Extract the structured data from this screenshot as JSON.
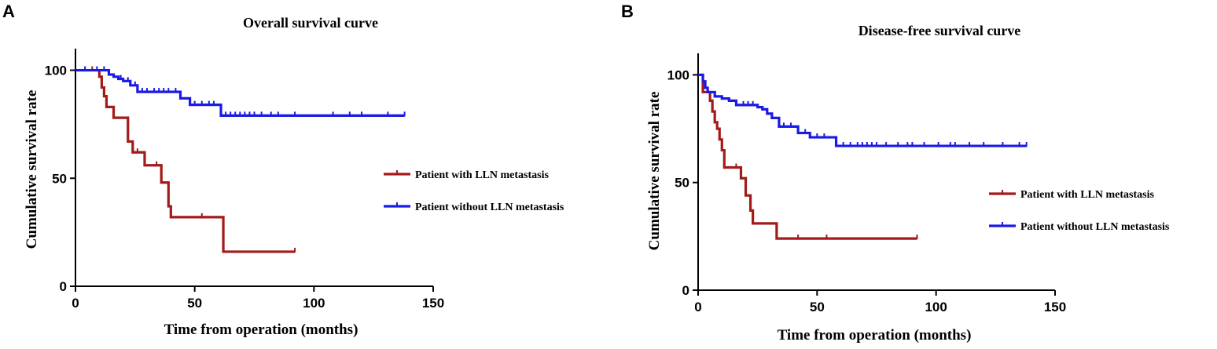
{
  "chart_data": [
    {
      "type": "line",
      "panel": "A",
      "title": "Overall survival curve",
      "xlabel": "Time from operation (months)",
      "ylabel": "Cumulative survival rate",
      "xlim": [
        0,
        150
      ],
      "ylim": [
        0,
        110
      ],
      "xticks": [
        0,
        50,
        100,
        150
      ],
      "yticks": [
        0,
        50,
        100
      ],
      "legend_position": "right",
      "series": [
        {
          "name": "Patient with LLN metastasis",
          "color": "#a31a1a",
          "steps": [
            [
              0,
              100
            ],
            [
              9,
              100
            ],
            [
              10,
              97
            ],
            [
              11,
              92
            ],
            [
              12,
              88
            ],
            [
              13,
              83
            ],
            [
              16,
              78
            ],
            [
              22,
              67
            ],
            [
              24,
              62
            ],
            [
              29,
              56
            ],
            [
              36,
              48
            ],
            [
              39,
              37
            ],
            [
              40,
              32
            ],
            [
              62,
              16
            ],
            [
              92,
              16
            ]
          ],
          "censor": [
            [
              7,
              100
            ],
            [
              26,
              62
            ],
            [
              34,
              56
            ],
            [
              53,
              32
            ],
            [
              92,
              16
            ]
          ]
        },
        {
          "name": "Patient without LLN metastasis",
          "color": "#1a1ae6",
          "steps": [
            [
              0,
              100
            ],
            [
              14,
              98
            ],
            [
              16,
              97
            ],
            [
              18,
              96
            ],
            [
              20,
              95
            ],
            [
              23,
              93
            ],
            [
              26,
              90
            ],
            [
              44,
              87
            ],
            [
              48,
              84
            ],
            [
              61,
              79
            ],
            [
              138,
              79
            ]
          ],
          "censor": [
            [
              4,
              100
            ],
            [
              9,
              100
            ],
            [
              12,
              100
            ],
            [
              19,
              96
            ],
            [
              22,
              95
            ],
            [
              25,
              93
            ],
            [
              28,
              90
            ],
            [
              30,
              90
            ],
            [
              33,
              90
            ],
            [
              35,
              90
            ],
            [
              37,
              90
            ],
            [
              39,
              90
            ],
            [
              42,
              90
            ],
            [
              50,
              84
            ],
            [
              53,
              84
            ],
            [
              56,
              84
            ],
            [
              58,
              84
            ],
            [
              63,
              79
            ],
            [
              65,
              79
            ],
            [
              67,
              79
            ],
            [
              69,
              79
            ],
            [
              71,
              79
            ],
            [
              73,
              79
            ],
            [
              75,
              79
            ],
            [
              78,
              79
            ],
            [
              82,
              79
            ],
            [
              85,
              79
            ],
            [
              92,
              79
            ],
            [
              108,
              79
            ],
            [
              115,
              79
            ],
            [
              120,
              79
            ],
            [
              131,
              79
            ],
            [
              138,
              79
            ]
          ]
        }
      ]
    },
    {
      "type": "line",
      "panel": "B",
      "title": "Disease-free survival curve",
      "xlabel": "Time from operation (months)",
      "ylabel": "Cumulative survival rate",
      "xlim": [
        0,
        150
      ],
      "ylim": [
        0,
        110
      ],
      "xticks": [
        0,
        50,
        100,
        150
      ],
      "yticks": [
        0,
        50,
        100
      ],
      "legend_position": "right",
      "series": [
        {
          "name": "Patient with LLN metastasis",
          "color": "#a31a1a",
          "steps": [
            [
              0,
              100
            ],
            [
              2,
              92
            ],
            [
              5,
              88
            ],
            [
              6,
              83
            ],
            [
              7,
              78
            ],
            [
              8,
              75
            ],
            [
              9,
              70
            ],
            [
              10,
              65
            ],
            [
              11,
              57
            ],
            [
              17,
              57
            ],
            [
              18,
              52
            ],
            [
              20,
              44
            ],
            [
              22,
              37
            ],
            [
              23,
              31
            ],
            [
              33,
              24
            ],
            [
              92,
              24
            ]
          ],
          "censor": [
            [
              3,
              95
            ],
            [
              4,
              92
            ],
            [
              16,
              57
            ],
            [
              42,
              24
            ],
            [
              54,
              24
            ],
            [
              92,
              24
            ]
          ]
        },
        {
          "name": "Patient without LLN metastasis",
          "color": "#1a1ae6",
          "steps": [
            [
              0,
              100
            ],
            [
              2,
              97
            ],
            [
              3,
              94
            ],
            [
              4,
              92
            ],
            [
              7,
              90
            ],
            [
              10,
              89
            ],
            [
              13,
              88
            ],
            [
              16,
              86
            ],
            [
              25,
              85
            ],
            [
              27,
              84
            ],
            [
              29,
              82
            ],
            [
              31,
              80
            ],
            [
              34,
              76
            ],
            [
              42,
              73
            ],
            [
              47,
              71
            ],
            [
              58,
              67
            ],
            [
              138,
              67
            ]
          ],
          "censor": [
            [
              19,
              86
            ],
            [
              21,
              86
            ],
            [
              23,
              86
            ],
            [
              36,
              76
            ],
            [
              39,
              76
            ],
            [
              45,
              73
            ],
            [
              50,
              71
            ],
            [
              53,
              71
            ],
            [
              61,
              67
            ],
            [
              64,
              67
            ],
            [
              67,
              67
            ],
            [
              69,
              67
            ],
            [
              71,
              67
            ],
            [
              73,
              67
            ],
            [
              75,
              67
            ],
            [
              79,
              67
            ],
            [
              84,
              67
            ],
            [
              88,
              67
            ],
            [
              90,
              67
            ],
            [
              95,
              67
            ],
            [
              101,
              67
            ],
            [
              106,
              67
            ],
            [
              108,
              67
            ],
            [
              114,
              67
            ],
            [
              120,
              67
            ],
            [
              128,
              67
            ],
            [
              135,
              67
            ],
            [
              138,
              67
            ]
          ]
        }
      ]
    }
  ]
}
